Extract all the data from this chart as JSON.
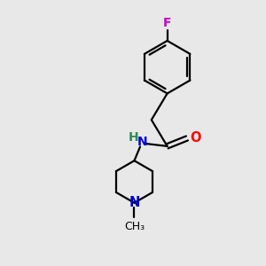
{
  "background_color": "#e8e8e8",
  "bond_color": "#000000",
  "F_color": "#cc00cc",
  "N_color": "#0000cd",
  "O_color": "#ff0000",
  "H_color": "#2e8b57",
  "line_width": 1.6,
  "fig_size": [
    3.0,
    3.0
  ],
  "dpi": 100,
  "xlim": [
    0,
    10
  ],
  "ylim": [
    0,
    10
  ]
}
